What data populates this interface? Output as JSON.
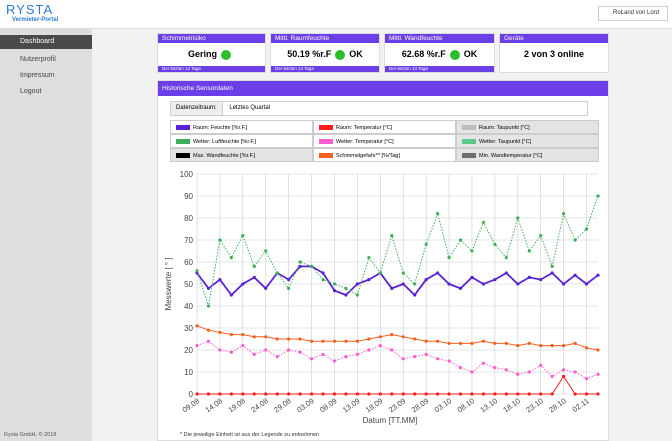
{
  "header": {
    "brand": "RYSTA",
    "subtitle": "Vermieter-Portal",
    "user": "RoLand von Lord"
  },
  "sidebar": {
    "items": [
      "Dashboard",
      "Nutzerprofil",
      "Impressum",
      "Logout"
    ],
    "footer": "Rysta GmbH, © 2018"
  },
  "cards": [
    {
      "title": "Schimmelrisiko",
      "value": "Gering",
      "note": "Der letzten 14 Tage"
    },
    {
      "title": "Mittl. Raumfeuchte",
      "value": "50.19 %r.F",
      "status": "OK",
      "note": "Der letzten 14 Tage"
    },
    {
      "title": "Mittl. Wandfeuchte",
      "value": "62.68 %r.F",
      "status": "OK",
      "note": "Der letzten 14 Tage"
    },
    {
      "title": "Geräte",
      "value": "2 von 3 online"
    }
  ],
  "panel": {
    "title": "Historische Sensordaten",
    "range_label": "Datenzeitraum:",
    "range_value": "Letztes Quartal",
    "footnote": "* Die jeweilige Einheit ist aus der Legende zu entnehmen"
  },
  "chart_data": {
    "type": "line",
    "ylabel": "Messwerte [ ° ]",
    "xlabel": "Datum [TT.MM]",
    "ylim": [
      0,
      100
    ],
    "yticks": [
      0,
      10,
      20,
      30,
      40,
      50,
      60,
      70,
      80,
      90,
      100
    ],
    "grid": true,
    "categories": [
      "09.08",
      null,
      "14.08",
      null,
      "19.08",
      null,
      "24.08",
      null,
      "29.08",
      null,
      "03.09",
      null,
      "08.09",
      null,
      "13.09",
      null,
      "18.09",
      null,
      "23.09",
      null,
      "28.09",
      null,
      "03.10",
      null,
      "08.10",
      null,
      "13.10",
      null,
      "18.10",
      null,
      "23.10",
      null,
      "28.10",
      null,
      "02.11",
      null
    ],
    "series": [
      {
        "name": "Raum: Feuchte [%r.F.]",
        "color": "#5a22d8",
        "values": [
          55,
          48,
          52,
          45,
          50,
          53,
          48,
          55,
          52,
          58,
          58,
          55,
          47,
          45,
          50,
          52,
          55,
          48,
          50,
          45,
          52,
          55,
          50,
          48,
          53,
          50,
          52,
          55,
          50,
          53,
          52,
          55,
          50,
          54,
          50,
          54
        ]
      },
      {
        "name": "Raum: Temperatur [°C]",
        "color": "#ff1a1a",
        "values": [
          0,
          0,
          0,
          0,
          0,
          0,
          0,
          0,
          0,
          0,
          0,
          0,
          0,
          0,
          0,
          0,
          0,
          0,
          0,
          0,
          0,
          0,
          0,
          0,
          0,
          0,
          0,
          0,
          0,
          0,
          0,
          0,
          8,
          0,
          0,
          0
        ]
      },
      {
        "name": "Raum: Taupunkt [°C]",
        "color": "#bdbdbd",
        "hidden": true,
        "values": [
          null,
          null,
          null,
          null,
          null,
          null,
          null,
          null,
          null,
          null,
          null,
          null,
          null,
          null,
          null,
          null,
          null,
          null,
          null,
          null,
          null,
          null,
          null,
          null,
          null,
          null,
          null,
          null,
          null,
          null,
          null,
          null,
          null,
          null,
          null,
          null
        ]
      },
      {
        "name": "Wetter: Luftfeuchte [%r.F.]",
        "color": "#3daf5a",
        "values": [
          56,
          40,
          70,
          62,
          72,
          58,
          65,
          55,
          48,
          60,
          58,
          52,
          50,
          48,
          45,
          62,
          55,
          72,
          55,
          50,
          68,
          82,
          62,
          70,
          65,
          78,
          68,
          62,
          80,
          65,
          72,
          58,
          82,
          70,
          75,
          90
        ]
      },
      {
        "name": "Wetter: Temperatur [°C]",
        "color": "#ff5cd0",
        "values": [
          22,
          24,
          20,
          19,
          22,
          18,
          20,
          17,
          20,
          19,
          16,
          18,
          15,
          17,
          18,
          20,
          22,
          20,
          16,
          17,
          18,
          16,
          15,
          12,
          10,
          14,
          12,
          11,
          9,
          10,
          13,
          8,
          11,
          10,
          7,
          9
        ]
      },
      {
        "name": "Wetter: Taupunkt [°C]",
        "color": "#5cc98a",
        "hidden": true,
        "values": [
          null,
          null,
          null,
          null,
          null,
          null,
          null,
          null,
          null,
          null,
          null,
          null,
          null,
          null,
          null,
          null,
          null,
          null,
          null,
          null,
          null,
          null,
          null,
          null,
          null,
          null,
          null,
          null,
          null,
          null,
          null,
          null,
          null,
          null,
          null,
          null
        ]
      },
      {
        "name": "Max. Wandfeuchte [%r.F.]",
        "color": "#000000",
        "hidden": true,
        "values": [
          null,
          null,
          null,
          null,
          null,
          null,
          null,
          null,
          null,
          null,
          null,
          null,
          null,
          null,
          null,
          null,
          null,
          null,
          null,
          null,
          null,
          null,
          null,
          null,
          null,
          null,
          null,
          null,
          null,
          null,
          null,
          null,
          null,
          null,
          null,
          null
        ]
      },
      {
        "name": "Schimmelgefahr** [%/Tag]",
        "color": "#f4601c",
        "values": [
          31,
          29,
          28,
          27,
          27,
          26,
          26,
          25,
          25,
          25,
          24,
          24,
          24,
          24,
          24,
          25,
          26,
          27,
          26,
          25,
          24,
          24,
          23,
          23,
          23,
          24,
          23,
          23,
          22,
          23,
          22,
          22,
          22,
          23,
          21,
          20
        ]
      },
      {
        "name": "Min. Wandtemperatur [°C]",
        "color": "#6e6e6e",
        "hidden": true,
        "values": [
          null,
          null,
          null,
          null,
          null,
          null,
          null,
          null,
          null,
          null,
          null,
          null,
          null,
          null,
          null,
          null,
          null,
          null,
          null,
          null,
          null,
          null,
          null,
          null,
          null,
          null,
          null,
          null,
          null,
          null,
          null,
          null,
          null,
          null,
          null,
          null
        ]
      }
    ]
  }
}
